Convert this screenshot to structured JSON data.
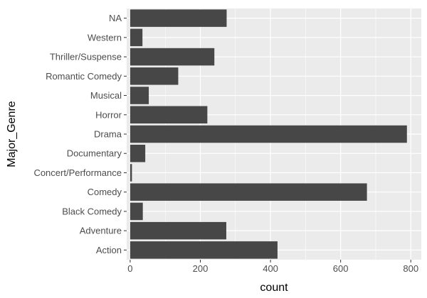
{
  "chart_data": {
    "type": "bar",
    "orientation": "horizontal",
    "categories": [
      "NA",
      "Western",
      "Thriller/Suspense",
      "Romantic Comedy",
      "Musical",
      "Horror",
      "Drama",
      "Documentary",
      "Concert/Performance",
      "Comedy",
      "Black Comedy",
      "Adventure",
      "Action"
    ],
    "values": [
      275,
      35,
      240,
      137,
      53,
      220,
      789,
      43,
      5,
      675,
      36,
      274,
      420
    ],
    "xlabel": "count",
    "ylabel": "Major_Genre",
    "xlim": [
      -10,
      830
    ],
    "x_ticks": [
      0,
      200,
      400,
      600,
      800
    ],
    "grid": true,
    "legend": "none",
    "colors": {
      "bar": "#474747",
      "panel": "#ebebeb",
      "grid": "#ffffff",
      "tick_text": "#4d4d4d",
      "title_text": "#000000"
    }
  }
}
